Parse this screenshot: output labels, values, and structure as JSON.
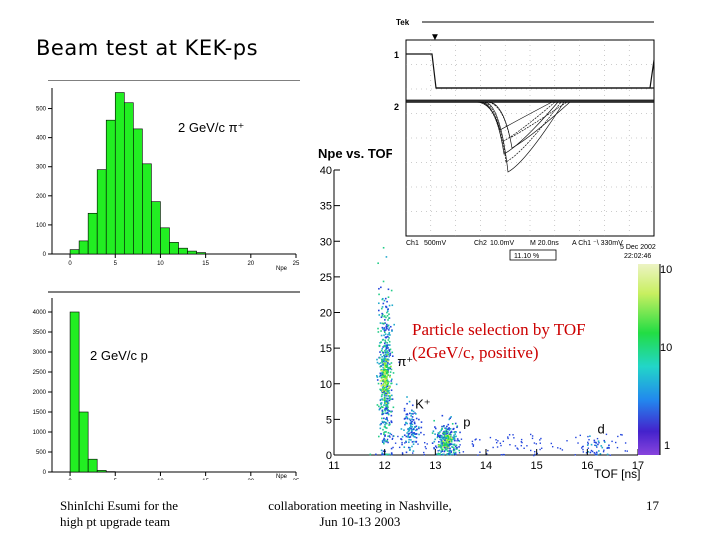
{
  "slide": {
    "title": "Beam test at KEK-ps",
    "caption_line1": "Particle selection by TOF",
    "caption_line2": "(2GeV/c, positive)",
    "footer_left_line1": "ShinIchi Esumi for the",
    "footer_left_line2": "high pt upgrade team",
    "footer_center_line1": "collaboration meeting in Nashville,",
    "footer_center_line2": "Jun 10-13 2003",
    "page_number": "17"
  },
  "colors": {
    "histogram_fill": "#22ee22",
    "caption": "#cc0000",
    "scope_trace": "#111111"
  },
  "scope": {
    "header": "Tek",
    "ch1_label": "Ch1",
    "ch1_scale": "500mV",
    "ch2_label": "Ch2",
    "ch2_scale": "10.0mV",
    "timebase": "M 20.0ns",
    "trigger": "A Ch1 ⁻\\ 330mV",
    "date": "5 Dec 2002",
    "time": "22:02:46",
    "readout": "11.10 %"
  },
  "chart_data": [
    {
      "type": "bar",
      "title": "2 GeV/c π⁺",
      "xlabel": "Npe",
      "x_bin_width": 1,
      "x_start": 0,
      "values": [
        15,
        45,
        140,
        290,
        460,
        555,
        520,
        430,
        310,
        180,
        90,
        40,
        20,
        10,
        5
      ],
      "xlim": [
        -2,
        25
      ],
      "ylim": [
        0,
        550
      ],
      "xticks": [
        "0",
        "5",
        "10",
        "15",
        "20",
        "25"
      ],
      "yticks": [
        "0",
        "100",
        "200",
        "300",
        "400",
        "500"
      ]
    },
    {
      "type": "bar",
      "title": "2 GeV/c p",
      "xlabel": "Npe",
      "x_bin_width": 1,
      "x_start": 0,
      "values": [
        4000,
        1500,
        320,
        40,
        10
      ],
      "xlim": [
        -2,
        25
      ],
      "ylim": [
        0,
        4000
      ],
      "xticks": [
        "0",
        "5",
        "10",
        "15",
        "20",
        "25"
      ],
      "yticks": [
        "0",
        "500",
        "1000",
        "1500",
        "2000",
        "2500",
        "3000",
        "3500",
        "4000"
      ]
    },
    {
      "type": "heatmap",
      "title": "Npe vs. TOF",
      "xlabel": "TOF [ns]",
      "xlim": [
        11,
        17
      ],
      "ylim": [
        0,
        40
      ],
      "xticks": [
        "11",
        "12",
        "13",
        "14",
        "15",
        "16",
        "17"
      ],
      "yticks": [
        "0",
        "5",
        "10",
        "15",
        "20",
        "25",
        "30",
        "35",
        "40"
      ],
      "colorbar_ticks": [
        "10",
        "10",
        "1"
      ],
      "clusters": [
        {
          "label": "π⁺",
          "tof": 12.0,
          "npe": 11
        },
        {
          "label": "K⁺",
          "tof": 12.5,
          "npe": 4
        },
        {
          "label": "p",
          "tof": 13.2,
          "npe": 2
        },
        {
          "label": "d",
          "tof": 16.2,
          "npe": 1
        }
      ]
    }
  ]
}
